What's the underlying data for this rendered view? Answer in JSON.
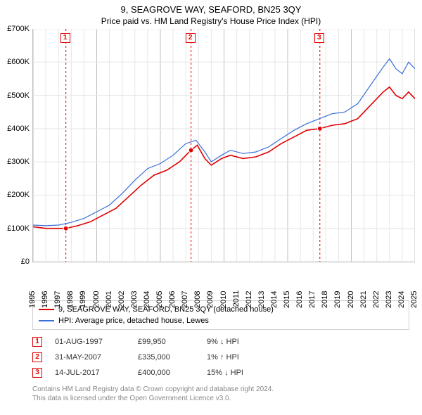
{
  "title": "9, SEAGROVE WAY, SEAFORD, BN25 3QY",
  "subtitle": "Price paid vs. HM Land Registry's House Price Index (HPI)",
  "chart": {
    "type": "line",
    "background_color": "#ffffff",
    "grid_color": "#e6e6e6",
    "emphasis_grid_color": "#bfbfbf",
    "x": {
      "min": 1995,
      "max": 2025,
      "ticks": [
        1995,
        1996,
        1997,
        1998,
        1999,
        2000,
        2001,
        2002,
        2003,
        2004,
        2005,
        2006,
        2007,
        2008,
        2009,
        2010,
        2011,
        2012,
        2013,
        2014,
        2015,
        2016,
        2017,
        2018,
        2019,
        2020,
        2021,
        2022,
        2023,
        2024,
        2025
      ]
    },
    "y": {
      "min": 0,
      "max": 700000,
      "tick_step": 100000,
      "tick_labels": [
        "£0",
        "£100K",
        "£200K",
        "£300K",
        "£400K",
        "£500K",
        "£600K",
        "£700K"
      ]
    },
    "series": [
      {
        "name": "9, SEAGROVE WAY, SEAFORD, BN25 3QY (detached house)",
        "color": "#e00000",
        "line_width": 1.6,
        "points": [
          [
            1995.0,
            105000
          ],
          [
            1996.0,
            100000
          ],
          [
            1997.0,
            100000
          ],
          [
            1997.6,
            99950
          ],
          [
            1998.5,
            108000
          ],
          [
            1999.5,
            120000
          ],
          [
            2000.5,
            140000
          ],
          [
            2001.5,
            160000
          ],
          [
            2002.5,
            195000
          ],
          [
            2003.5,
            230000
          ],
          [
            2004.5,
            260000
          ],
          [
            2005.5,
            275000
          ],
          [
            2006.5,
            300000
          ],
          [
            2007.4,
            335000
          ],
          [
            2007.9,
            350000
          ],
          [
            2008.5,
            310000
          ],
          [
            2009.0,
            290000
          ],
          [
            2009.8,
            310000
          ],
          [
            2010.5,
            320000
          ],
          [
            2011.5,
            310000
          ],
          [
            2012.5,
            315000
          ],
          [
            2013.5,
            330000
          ],
          [
            2014.5,
            355000
          ],
          [
            2015.5,
            375000
          ],
          [
            2016.5,
            395000
          ],
          [
            2017.5,
            400000
          ],
          [
            2018.5,
            410000
          ],
          [
            2019.5,
            415000
          ],
          [
            2020.5,
            430000
          ],
          [
            2021.5,
            470000
          ],
          [
            2022.5,
            510000
          ],
          [
            2023.0,
            525000
          ],
          [
            2023.5,
            500000
          ],
          [
            2024.0,
            490000
          ],
          [
            2024.5,
            510000
          ],
          [
            2025.0,
            490000
          ]
        ]
      },
      {
        "name": "HPI: Average price, detached house, Lewes",
        "color": "#3a6fd8",
        "line_width": 1.2,
        "points": [
          [
            1995.0,
            110000
          ],
          [
            1996.0,
            108000
          ],
          [
            1997.0,
            110000
          ],
          [
            1998.0,
            118000
          ],
          [
            1999.0,
            130000
          ],
          [
            2000.0,
            150000
          ],
          [
            2001.0,
            170000
          ],
          [
            2002.0,
            205000
          ],
          [
            2003.0,
            245000
          ],
          [
            2004.0,
            280000
          ],
          [
            2005.0,
            295000
          ],
          [
            2006.0,
            320000
          ],
          [
            2007.0,
            355000
          ],
          [
            2007.8,
            365000
          ],
          [
            2008.5,
            330000
          ],
          [
            2009.0,
            300000
          ],
          [
            2009.8,
            320000
          ],
          [
            2010.5,
            335000
          ],
          [
            2011.5,
            325000
          ],
          [
            2012.5,
            330000
          ],
          [
            2013.5,
            345000
          ],
          [
            2014.5,
            370000
          ],
          [
            2015.5,
            395000
          ],
          [
            2016.5,
            415000
          ],
          [
            2017.5,
            430000
          ],
          [
            2018.5,
            445000
          ],
          [
            2019.5,
            450000
          ],
          [
            2020.5,
            475000
          ],
          [
            2021.5,
            530000
          ],
          [
            2022.5,
            585000
          ],
          [
            2023.0,
            610000
          ],
          [
            2023.5,
            580000
          ],
          [
            2024.0,
            565000
          ],
          [
            2024.5,
            600000
          ],
          [
            2025.0,
            580000
          ]
        ]
      }
    ],
    "sale_markers": [
      {
        "n": "1",
        "x": 1997.58,
        "y": 99950
      },
      {
        "n": "2",
        "x": 2007.41,
        "y": 335000
      },
      {
        "n": "3",
        "x": 2017.53,
        "y": 400000
      }
    ],
    "sale_label_top_offset": 6
  },
  "legend": {
    "items": [
      {
        "label": "9, SEAGROVE WAY, SEAFORD, BN25 3QY (detached house)",
        "color": "#e00000"
      },
      {
        "label": "HPI: Average price, detached house, Lewes",
        "color": "#3a6fd8"
      }
    ]
  },
  "sales": [
    {
      "n": "1",
      "date": "01-AUG-1997",
      "price": "£99,950",
      "delta": "9% ↓ HPI"
    },
    {
      "n": "2",
      "date": "31-MAY-2007",
      "price": "£335,000",
      "delta": "1% ↑ HPI"
    },
    {
      "n": "3",
      "date": "14-JUL-2017",
      "price": "£400,000",
      "delta": "15% ↓ HPI"
    }
  ],
  "footer": {
    "line1": "Contains HM Land Registry data © Crown copyright and database right 2024.",
    "line2": "This data is licensed under the Open Government Licence v3.0."
  }
}
